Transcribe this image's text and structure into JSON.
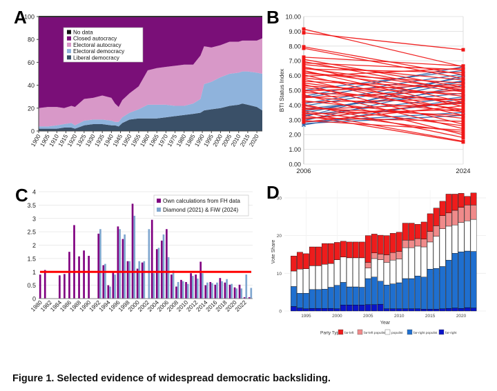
{
  "panels": {
    "a": "A",
    "b": "B",
    "c": "C",
    "d": "D"
  },
  "caption": "Figure 1. Selected evidence of widespread democratic backsliding.",
  "chart_data": [
    {
      "type": "area",
      "panel": "A",
      "title": "",
      "xlabel": "",
      "ylabel": "",
      "ylim": [
        0,
        100
      ],
      "xlim": [
        1900,
        2023
      ],
      "xticks": [
        "1900",
        "1905",
        "1910",
        "1915",
        "1920",
        "1925",
        "1930",
        "1935",
        "1940",
        "1945",
        "1950",
        "1955",
        "1960",
        "1965",
        "1970",
        "1975",
        "1980",
        "1985",
        "1990",
        "1995",
        "2000",
        "2005",
        "2010",
        "2015",
        "2020"
      ],
      "yticks": [
        "0",
        "20",
        "40",
        "60",
        "80",
        "100"
      ],
      "legend_position": "top-left",
      "x": [
        1900,
        1905,
        1910,
        1914,
        1918,
        1920,
        1925,
        1930,
        1935,
        1940,
        1942,
        1944,
        1946,
        1950,
        1955,
        1960,
        1965,
        1970,
        1975,
        1980,
        1985,
        1989,
        1991,
        1995,
        2000,
        2005,
        2010,
        2012,
        2015,
        2020,
        2023
      ],
      "series": [
        {
          "name": "Liberal democracy",
          "color": "#3a5068",
          "values": [
            2,
            2,
            2,
            3,
            3,
            2,
            5,
            6,
            6,
            5,
            5,
            4,
            7,
            10,
            11,
            11,
            11,
            12,
            13,
            14,
            15,
            16,
            18,
            19,
            20,
            22,
            23,
            24,
            23,
            21,
            18
          ]
        },
        {
          "name": "Electoral democracy",
          "color": "#8fb3dc",
          "values": [
            2,
            2,
            3,
            3,
            4,
            3,
            4,
            4,
            4,
            4,
            3,
            4,
            5,
            6,
            8,
            12,
            12,
            11,
            9,
            8,
            9,
            12,
            23,
            24,
            27,
            28,
            28,
            28,
            29,
            30,
            32
          ]
        },
        {
          "name": "Electoral autocracy",
          "color": "#d898c8",
          "values": [
            16,
            17,
            16,
            14,
            15,
            16,
            19,
            19,
            21,
            20,
            16,
            13,
            15,
            17,
            20,
            30,
            32,
            33,
            35,
            36,
            34,
            38,
            33,
            30,
            28,
            28,
            27,
            27,
            27,
            28,
            31
          ]
        },
        {
          "name": "Closed autocracy",
          "color": "#7a0f78",
          "values": [
            80,
            79,
            79,
            80,
            78,
            79,
            72,
            71,
            69,
            71,
            76,
            79,
            73,
            67,
            61,
            47,
            45,
            44,
            43,
            42,
            42,
            34,
            26,
            27,
            25,
            22,
            22,
            21,
            21,
            21,
            19
          ]
        },
        {
          "name": "No data",
          "color": "#111111",
          "values": [
            0,
            0,
            0,
            0,
            0,
            0,
            0,
            0,
            0,
            0,
            0,
            0,
            0,
            0,
            0,
            0,
            0,
            0,
            0,
            0,
            0,
            0,
            0,
            0,
            0,
            0,
            0,
            0,
            0,
            0,
            0
          ]
        }
      ]
    },
    {
      "type": "line",
      "panel": "B",
      "title": "",
      "xlabel": "",
      "ylabel": "BTI Status Index",
      "x": [
        "2006",
        "2024"
      ],
      "ylim": [
        0,
        10
      ],
      "yticks": [
        "0.00",
        "1.00",
        "2.00",
        "3.00",
        "4.00",
        "5.00",
        "6.00",
        "7.00",
        "8.00",
        "9.00",
        "10.00"
      ],
      "series_red": [
        [
          9.15,
          6.6
        ],
        [
          8.9,
          7.75
        ],
        [
          7.95,
          6.05
        ],
        [
          7.85,
          5.8
        ],
        [
          7.25,
          6.65
        ],
        [
          7.1,
          5.2
        ],
        [
          6.95,
          4.95
        ],
        [
          6.85,
          6.4
        ],
        [
          6.75,
          5.7
        ],
        [
          6.6,
          4.2
        ],
        [
          6.5,
          5.05
        ],
        [
          6.45,
          6.2
        ],
        [
          6.35,
          3.9
        ],
        [
          6.25,
          4.9
        ],
        [
          6.15,
          5.5
        ],
        [
          6.05,
          3.55
        ],
        [
          5.95,
          6.5
        ],
        [
          5.85,
          4.6
        ],
        [
          5.75,
          3.3
        ],
        [
          5.6,
          5.2
        ],
        [
          5.5,
          4.1
        ],
        [
          5.4,
          2.7
        ],
        [
          5.3,
          4.75
        ],
        [
          5.2,
          3.7
        ],
        [
          5.05,
          2.4
        ],
        [
          4.95,
          5.4
        ],
        [
          4.85,
          4.35
        ],
        [
          4.7,
          2.0
        ],
        [
          4.6,
          3.55
        ],
        [
          4.5,
          5.0
        ],
        [
          4.3,
          3.1
        ],
        [
          4.2,
          4.4
        ],
        [
          4.05,
          1.8
        ],
        [
          3.95,
          2.6
        ],
        [
          3.8,
          3.3
        ],
        [
          3.7,
          4.1
        ],
        [
          3.6,
          2.15
        ],
        [
          3.5,
          1.55
        ],
        [
          3.4,
          3.7
        ],
        [
          3.3,
          1.5
        ],
        [
          3.15,
          2.9
        ],
        [
          3.05,
          4.25
        ],
        [
          2.95,
          2.3
        ],
        [
          2.85,
          3.95
        ]
      ],
      "series_blue": [
        [
          5.0,
          6.35
        ],
        [
          4.6,
          6.6
        ],
        [
          4.5,
          6.1
        ],
        [
          4.1,
          5.85
        ],
        [
          3.95,
          5.65
        ],
        [
          3.75,
          4.8
        ],
        [
          3.6,
          5.1
        ],
        [
          3.45,
          5.6
        ],
        [
          3.3,
          4.55
        ],
        [
          3.2,
          6.0
        ],
        [
          3.05,
          4.2
        ],
        [
          2.95,
          5.35
        ],
        [
          2.85,
          3.5
        ],
        [
          2.75,
          3.3
        ],
        [
          2.65,
          4.45
        ]
      ]
    },
    {
      "type": "bar",
      "panel": "C",
      "title": "",
      "xlabel": "",
      "ylabel": "",
      "ylim": [
        0,
        4
      ],
      "yticks": [
        "0",
        "0.5",
        "1",
        "1.5",
        "2",
        "2.5",
        "3",
        "3.5",
        "4"
      ],
      "xticks": [
        "1980",
        "1982",
        "1984",
        "1986",
        "1988",
        "1990",
        "1992",
        "1994",
        "1996",
        "1998",
        "2000",
        "2002",
        "2004",
        "2006",
        "2008",
        "2010",
        "2012",
        "2014",
        "2016",
        "2018",
        "2020",
        "2022"
      ],
      "categories": [
        "1980",
        "1981",
        "1982",
        "1983",
        "1984",
        "1985",
        "1986",
        "1987",
        "1988",
        "1989",
        "1990",
        "1991",
        "1992",
        "1993",
        "1994",
        "1995",
        "1996",
        "1997",
        "1998",
        "1999",
        "2000",
        "2001",
        "2002",
        "2003",
        "2004",
        "2005",
        "2006",
        "2007",
        "2008",
        "2009",
        "2010",
        "2011",
        "2012",
        "2013",
        "2014",
        "2015",
        "2016",
        "2017",
        "2018",
        "2019",
        "2020",
        "2021",
        "2022",
        "2023"
      ],
      "reference_line": 1,
      "legend_position": "top-right",
      "series": [
        {
          "name": "Own calculations from FH data",
          "color": "#800080",
          "values": [
            0.9,
            1.07,
            0,
            0,
            0.87,
            0.92,
            1.75,
            2.75,
            1.58,
            1.8,
            1.6,
            0,
            2.43,
            1.25,
            0.5,
            0.97,
            2.7,
            2.23,
            1.4,
            3.55,
            1.12,
            1.35,
            0,
            2.95,
            1.85,
            2.17,
            2.6,
            0.9,
            0.45,
            0.7,
            0.62,
            0.95,
            0.9,
            1.38,
            0.5,
            0.62,
            0.52,
            0.77,
            0.6,
            0.52,
            0.42,
            0.52,
            0.05,
            0.05
          ]
        },
        {
          "name": "Diamond (2021) & FiW (2024)",
          "color": "#7fa6cf",
          "values": [
            0,
            0,
            0,
            0,
            0,
            0,
            0,
            0,
            0,
            0,
            0,
            0,
            2.6,
            1.3,
            0.45,
            0.9,
            2.6,
            2.4,
            1.4,
            3.1,
            1.4,
            1.4,
            2.6,
            0.95,
            1.9,
            2.4,
            1.55,
            1.05,
            0.62,
            0.65,
            0.55,
            0.85,
            0.75,
            0.95,
            0.6,
            0.58,
            0.6,
            0.65,
            0.73,
            0.55,
            0.38,
            0.38,
            0.9,
            0.4
          ]
        }
      ]
    },
    {
      "type": "bar",
      "panel": "D",
      "stacked": true,
      "title": "",
      "xlabel": "Year",
      "ylabel": "Vote Share",
      "ylim": [
        0,
        32
      ],
      "yticks": [
        "0",
        "10",
        "20",
        "30"
      ],
      "xticks": [
        "1995",
        "2000",
        "2005",
        "2010",
        "2015",
        "2020"
      ],
      "legend_title": "Party Type",
      "legend_position": "bottom",
      "years": [
        1993,
        1994,
        1995,
        1996,
        1997,
        1998,
        1999,
        2000,
        2001,
        2002,
        2003,
        2004,
        2005,
        2006,
        2007,
        2008,
        2009,
        2010,
        2011,
        2012,
        2013,
        2014,
        2015,
        2016,
        2017,
        2018,
        2019,
        2020,
        2021,
        2022
      ],
      "series": [
        {
          "name": "far-right",
          "color": "#0a14c8",
          "values": [
            1.2,
            0.8,
            0.6,
            0.7,
            0.7,
            0.7,
            0.7,
            0.6,
            1.6,
            1.6,
            1.6,
            1.6,
            1.7,
            1.7,
            1.8,
            0.6,
            0.6,
            0.6,
            0.6,
            0.6,
            0.6,
            0.5,
            0.5,
            0.5,
            0.6,
            0.7,
            0.8,
            0.7,
            0.9,
            0.8
          ]
        },
        {
          "name": "far-right populist",
          "color": "#1f6fcf",
          "values": [
            5.3,
            3.9,
            4.1,
            5.0,
            5.0,
            5.1,
            5.6,
            6.2,
            6.0,
            4.8,
            4.8,
            4.7,
            6.9,
            7.3,
            6.1,
            6.3,
            6.6,
            6.9,
            8.0,
            8.0,
            8.7,
            8.5,
            10.6,
            10.8,
            11.2,
            12.8,
            14.5,
            15.0,
            15.0,
            15.0
          ]
        },
        {
          "name": "populist",
          "color": "#ffffff",
          "values": [
            4.1,
            6.4,
            6.5,
            6.3,
            6.3,
            6.6,
            6.3,
            6.8,
            6.7,
            7.7,
            7.7,
            7.8,
            2.8,
            4.9,
            5.7,
            6.0,
            6.3,
            6.3,
            8.2,
            8.2,
            7.9,
            8.0,
            7.2,
            8.5,
            10.0,
            9.0,
            7.5,
            7.8,
            8.0,
            8.5
          ]
        },
        {
          "name": "far-left populist",
          "color": "#f08a8a",
          "values": [
            0.0,
            0.0,
            0.0,
            0.0,
            0.0,
            0.0,
            0.0,
            0.0,
            0.0,
            0.0,
            0.0,
            0.0,
            1.5,
            1.5,
            1.5,
            2.0,
            2.0,
            2.0,
            2.0,
            2.0,
            2.0,
            2.1,
            2.8,
            2.8,
            3.5,
            3.5,
            3.9,
            4.0,
            4.2,
            3.8
          ]
        },
        {
          "name": "far-left",
          "color": "#ee1c1c",
          "values": [
            4.0,
            4.5,
            4.0,
            5.0,
            5.0,
            5.5,
            5.3,
            4.6,
            4.2,
            4.2,
            4.2,
            4.2,
            7.1,
            5.0,
            5.0,
            5.1,
            5.1,
            5.1,
            4.5,
            4.5,
            3.8,
            4.5,
            4.7,
            4.7,
            3.8,
            5.0,
            4.3,
            3.7,
            2.3,
            3.2
          ]
        }
      ]
    }
  ]
}
